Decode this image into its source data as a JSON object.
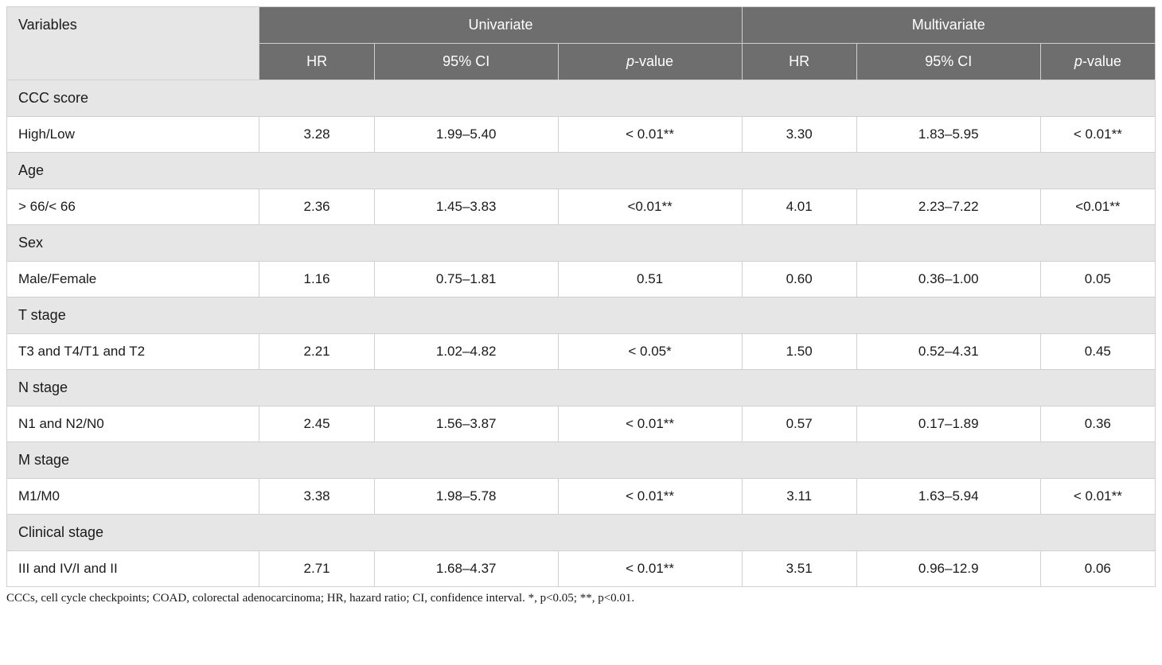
{
  "table": {
    "headers": {
      "variables": "Variables",
      "univariate": "Univariate",
      "multivariate": "Multivariate",
      "hr": "HR",
      "ci": "95% CI",
      "pvalue_p": "p",
      "pvalue_rest": "-value"
    },
    "styling": {
      "header_bg": "#6e6e6e",
      "header_text": "#ffffff",
      "section_bg": "#e6e6e6",
      "data_bg": "#ffffff",
      "border_color": "#d0d0d0",
      "body_text": "#1a1a1a",
      "header_fontsize": 18,
      "cell_fontsize": 17,
      "footnote_fontsize": 15
    },
    "column_widths_pct": [
      22,
      10,
      16,
      16,
      10,
      16,
      10
    ],
    "sections": [
      {
        "label": "CCC score",
        "rows": [
          {
            "label": "High/Low",
            "uni_hr": "3.28",
            "uni_ci": "1.99–5.40",
            "uni_p": "< 0.01**",
            "mul_hr": "3.30",
            "mul_ci": "1.83–5.95",
            "mul_p": "< 0.01**"
          }
        ]
      },
      {
        "label": "Age",
        "rows": [
          {
            "label": "> 66/< 66",
            "uni_hr": "2.36",
            "uni_ci": "1.45–3.83",
            "uni_p": "<0.01**",
            "mul_hr": "4.01",
            "mul_ci": "2.23–7.22",
            "mul_p": "<0.01**"
          }
        ]
      },
      {
        "label": "Sex",
        "rows": [
          {
            "label": "Male/Female",
            "uni_hr": "1.16",
            "uni_ci": "0.75–1.81",
            "uni_p": "0.51",
            "mul_hr": "0.60",
            "mul_ci": "0.36–1.00",
            "mul_p": "0.05"
          }
        ]
      },
      {
        "label": "T stage",
        "rows": [
          {
            "label": "T3 and T4/T1 and T2",
            "uni_hr": "2.21",
            "uni_ci": "1.02–4.82",
            "uni_p": "< 0.05*",
            "mul_hr": "1.50",
            "mul_ci": "0.52–4.31",
            "mul_p": "0.45"
          }
        ]
      },
      {
        "label": "N stage",
        "rows": [
          {
            "label": "N1 and N2/N0",
            "uni_hr": "2.45",
            "uni_ci": "1.56–3.87",
            "uni_p": "< 0.01**",
            "mul_hr": "0.57",
            "mul_ci": "0.17–1.89",
            "mul_p": "0.36"
          }
        ]
      },
      {
        "label": "M stage",
        "rows": [
          {
            "label": "M1/M0",
            "uni_hr": "3.38",
            "uni_ci": "1.98–5.78",
            "uni_p": "< 0.01**",
            "mul_hr": "3.11",
            "mul_ci": "1.63–5.94",
            "mul_p": "< 0.01**"
          }
        ]
      },
      {
        "label": "Clinical stage",
        "rows": [
          {
            "label": "III and IV/I and II",
            "uni_hr": "2.71",
            "uni_ci": "1.68–4.37",
            "uni_p": "< 0.01**",
            "mul_hr": "3.51",
            "mul_ci": "0.96–12.9",
            "mul_p": "0.06"
          }
        ]
      }
    ]
  },
  "footnote": "CCCs, cell cycle checkpoints; COAD, colorectal adenocarcinoma; HR, hazard ratio; CI, confidence interval. *, p<0.05; **, p<0.01."
}
